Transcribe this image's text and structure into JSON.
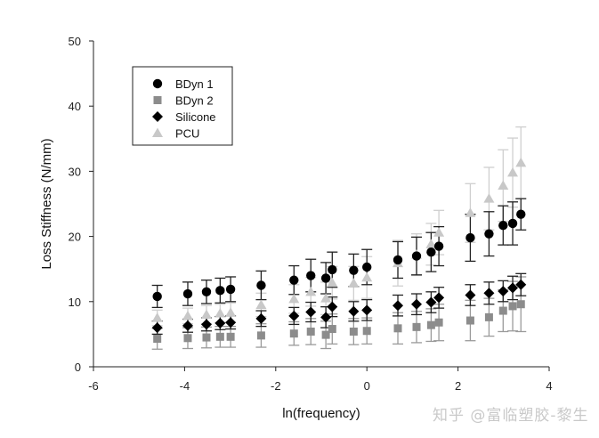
{
  "watermark": "知乎 @富临塑胶-黎生",
  "chart_data": {
    "type": "scatter",
    "title": "",
    "xlabel": "ln(frequency)",
    "ylabel": "Loss Stiffness (N/mm)",
    "xlim": [
      -6,
      4
    ],
    "ylim": [
      0,
      50
    ],
    "xticks": [
      -6,
      -4,
      -2,
      0,
      2,
      4
    ],
    "yticks": [
      0,
      10,
      20,
      30,
      40,
      50
    ],
    "grid": false,
    "legend_position": "upper-left",
    "x": [
      -4.6,
      -3.93,
      -3.52,
      -3.22,
      -2.99,
      -2.32,
      -1.6,
      -1.23,
      -0.9,
      -0.76,
      -0.29,
      0.0,
      0.68,
      1.09,
      1.41,
      1.58,
      2.27,
      2.68,
      2.99,
      3.2,
      3.38
    ],
    "series": [
      {
        "name": "BDyn 1",
        "marker": "circle",
        "color": "#000000",
        "values": [
          10.8,
          11.2,
          11.5,
          11.7,
          11.9,
          12.5,
          13.3,
          14.0,
          13.6,
          14.9,
          14.8,
          15.3,
          16.4,
          17.0,
          17.6,
          18.5,
          19.8,
          20.4,
          21.7,
          22.0,
          23.4
        ],
        "errors": [
          1.7,
          1.8,
          1.8,
          1.9,
          1.9,
          2.2,
          2.2,
          2.5,
          2.4,
          2.7,
          2.5,
          2.7,
          2.8,
          2.9,
          3.0,
          3.0,
          3.6,
          3.4,
          3.0,
          3.3,
          2.4
        ]
      },
      {
        "name": "BDyn 2",
        "marker": "square",
        "color": "#8c8c8c",
        "values": [
          4.3,
          4.4,
          4.5,
          4.6,
          4.6,
          4.8,
          5.1,
          5.4,
          4.9,
          5.8,
          5.4,
          5.5,
          5.9,
          6.1,
          6.4,
          6.8,
          7.1,
          7.6,
          8.6,
          9.3,
          9.6
        ],
        "errors": [
          1.6,
          1.6,
          1.6,
          1.6,
          1.6,
          1.8,
          1.8,
          2.0,
          2.1,
          2.3,
          2.0,
          2.0,
          2.4,
          2.4,
          2.5,
          2.8,
          3.1,
          2.9,
          3.2,
          3.8,
          4.2
        ]
      },
      {
        "name": "Silicone",
        "marker": "diamond",
        "color": "#000000",
        "values": [
          6.0,
          6.3,
          6.5,
          6.7,
          6.8,
          7.4,
          7.8,
          8.4,
          7.6,
          9.2,
          8.5,
          8.7,
          9.4,
          9.6,
          9.9,
          10.6,
          11.0,
          11.3,
          11.6,
          12.1,
          12.6
        ],
        "errors": [
          1.0,
          1.0,
          1.0,
          1.0,
          1.0,
          1.2,
          1.3,
          1.5,
          1.6,
          1.5,
          1.5,
          1.6,
          1.6,
          1.6,
          1.6,
          1.6,
          1.6,
          1.7,
          1.6,
          1.8,
          1.7
        ]
      },
      {
        "name": "PCU",
        "marker": "triangle",
        "color": "#c8c8c8",
        "values": [
          7.5,
          7.8,
          8.0,
          8.2,
          8.3,
          9.5,
          10.4,
          11.5,
          10.5,
          12.9,
          12.8,
          13.7,
          15.9,
          17.2,
          18.8,
          20.6,
          23.6,
          25.8,
          27.8,
          29.8,
          31.3
        ],
        "errors": [
          1.2,
          1.2,
          1.4,
          1.4,
          1.5,
          1.8,
          2.2,
          2.2,
          2.5,
          2.5,
          2.6,
          3.2,
          3.5,
          3.2,
          3.2,
          3.4,
          4.5,
          4.8,
          5.5,
          5.3,
          5.5
        ]
      }
    ]
  }
}
